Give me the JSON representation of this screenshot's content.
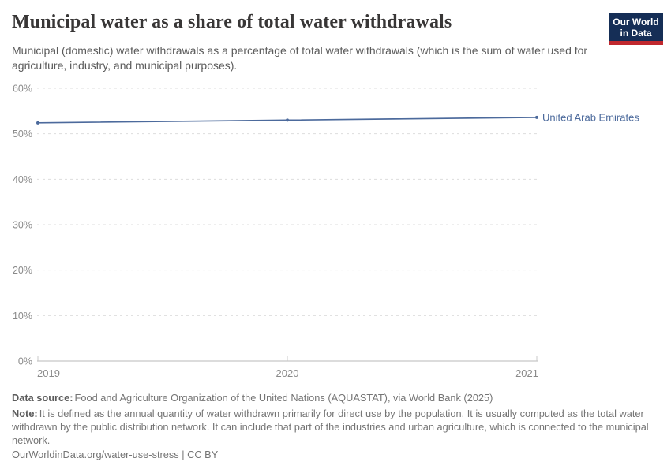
{
  "header": {
    "title": "Municipal water as a share of total water withdrawals",
    "subtitle": "Municipal (domestic) water withdrawals as a percentage of total water withdrawals (which is the sum of water used for agriculture, industry, and municipal purposes).",
    "logo": {
      "line1": "Our World",
      "line2": "in Data",
      "bg_color": "#152e56",
      "accent_color": "#c0282e"
    }
  },
  "chart_data": {
    "type": "line",
    "title": "Municipal water as a share of total water withdrawals",
    "x": [
      2019,
      2020,
      2021
    ],
    "x_tick_labels": [
      "2019",
      "2020",
      "2021"
    ],
    "series": [
      {
        "name": "United Arab Emirates",
        "color": "#4C6A9C",
        "values": [
          52.4,
          53.0,
          53.6
        ]
      }
    ],
    "ylim": [
      0,
      60
    ],
    "y_tick_step": 10,
    "y_tick_suffix": "%",
    "y_tick_labels": [
      "0%",
      "10%",
      "20%",
      "30%",
      "40%",
      "50%",
      "60%"
    ],
    "grid": "horizontal-dashed",
    "grid_color": "#dddddd",
    "axis_color": "#c8c8c8",
    "tick_label_color": "#8a8a8a",
    "legend_position": "right-of-line"
  },
  "footer": {
    "datasource_label": "Data source:",
    "datasource_text": "Food and Agriculture Organization of the United Nations (AQUASTAT), via World Bank (2025)",
    "note_label": "Note:",
    "note_text": "It is defined as the annual quantity of water withdrawn primarily for direct use by the population. It is usually computed as the total water withdrawn by the public distribution network. It can include that part of the industries and urban agriculture, which is connected to the municipal network.",
    "link": "OurWorldinData.org/water-use-stress | CC BY"
  }
}
